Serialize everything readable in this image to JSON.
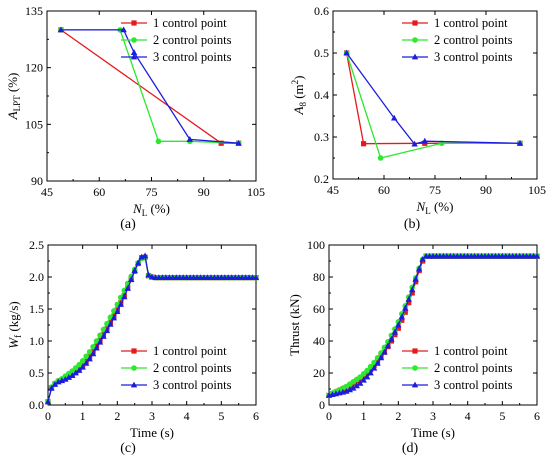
{
  "figure": {
    "colors": {
      "series1": "#e41a1c",
      "series2": "#2ee82e",
      "series3": "#1c1cdc",
      "axis": "#000000"
    },
    "markers": {
      "series1": "square",
      "series2": "circle",
      "series3": "triangle"
    }
  },
  "chart_data": [
    {
      "type": "line",
      "caption": "(a)",
      "xlabel": {
        "main": "N",
        "sub": "L",
        "unit": " (%)"
      },
      "ylabel": {
        "main": "A",
        "sub": "LPT",
        "unit": " (%)"
      },
      "xlim": [
        45,
        105
      ],
      "ylim": [
        90,
        135
      ],
      "xticks": [
        45,
        60,
        75,
        90,
        105
      ],
      "yticks": [
        90,
        105,
        120,
        135
      ],
      "xtick_labels": [
        "45",
        "60",
        "75",
        "90",
        "105"
      ],
      "ytick_labels": [
        "90",
        "105",
        "120",
        "135"
      ],
      "legend": "top-right",
      "series": [
        {
          "name": "1 control point",
          "marker": "square",
          "color": "#e41a1c",
          "points": [
            [
              49,
              130
            ],
            [
              95,
              100
            ],
            [
              100,
              100
            ]
          ]
        },
        {
          "name": "2 control points",
          "marker": "circle",
          "color": "#2ee82e",
          "points": [
            [
              49,
              130
            ],
            [
              66,
              130
            ],
            [
              77,
              100.5
            ],
            [
              86,
              100.5
            ],
            [
              100,
              100
            ]
          ]
        },
        {
          "name": "3 control points",
          "marker": "triangle",
          "color": "#1c1cdc",
          "points": [
            [
              49,
              130
            ],
            [
              67,
              130
            ],
            [
              70,
              124
            ],
            [
              86,
              101
            ],
            [
              100,
              100
            ]
          ]
        }
      ]
    },
    {
      "type": "line",
      "caption": "(b)",
      "xlabel": {
        "main": "N",
        "sub": "L",
        "unit": " (%)"
      },
      "ylabel": {
        "main": "A",
        "sub": "8",
        "unit": " (m",
        "sup": "2",
        "unit2": ")"
      },
      "xlim": [
        45,
        105
      ],
      "ylim": [
        0.2,
        0.6
      ],
      "xticks": [
        45,
        60,
        75,
        90,
        105
      ],
      "yticks": [
        0.2,
        0.3,
        0.4,
        0.5,
        0.6
      ],
      "xtick_labels": [
        "45",
        "60",
        "75",
        "90",
        "105"
      ],
      "ytick_labels": [
        "0.2",
        "0.3",
        "0.4",
        "0.5",
        "0.6"
      ],
      "legend": "top-right",
      "series": [
        {
          "name": "1 control point",
          "marker": "square",
          "color": "#e41a1c",
          "points": [
            [
              49,
              0.5
            ],
            [
              54,
              0.284
            ],
            [
              72,
              0.285
            ],
            [
              100,
              0.285
            ]
          ]
        },
        {
          "name": "2 control points",
          "marker": "circle",
          "color": "#2ee82e",
          "points": [
            [
              49,
              0.5
            ],
            [
              59,
              0.25
            ],
            [
              77,
              0.285
            ],
            [
              100,
              0.285
            ]
          ]
        },
        {
          "name": "3 control points",
          "marker": "triangle",
          "color": "#1c1cdc",
          "points": [
            [
              49,
              0.5
            ],
            [
              63,
              0.345
            ],
            [
              69,
              0.283
            ],
            [
              72,
              0.29
            ],
            [
              100,
              0.285
            ]
          ]
        }
      ]
    },
    {
      "type": "line",
      "caption": "(c)",
      "xlabel": {
        "main": "Time",
        "unit": " (s)"
      },
      "ylabel": {
        "main": "W",
        "sub": "f",
        "unit": " (kg/s)"
      },
      "xlim": [
        0,
        6
      ],
      "ylim": [
        0,
        2.5
      ],
      "xticks": [
        0,
        1,
        2,
        3,
        4,
        5,
        6
      ],
      "yticks": [
        0,
        0.5,
        1,
        1.5,
        2,
        2.5
      ],
      "xtick_labels": [
        "0",
        "1",
        "2",
        "3",
        "4",
        "5",
        "6"
      ],
      "ytick_labels": [
        "0.0",
        "0.5",
        "1.0",
        "1.5",
        "2.0",
        "2.5"
      ],
      "legend": "bottom-right",
      "series": [
        {
          "name": "1 control point",
          "marker": "square",
          "color": "#e41a1c",
          "x": [
            0,
            0.1,
            0.2,
            0.3,
            0.4,
            0.5,
            0.6,
            0.7,
            0.8,
            0.9,
            1.0,
            1.1,
            1.2,
            1.3,
            1.4,
            1.5,
            1.6,
            1.7,
            1.8,
            1.9,
            2.0,
            2.1,
            2.2,
            2.3,
            2.4,
            2.5,
            2.6,
            2.7,
            2.8,
            2.9,
            3.0,
            3.1,
            3.2,
            3.3,
            3.4,
            3.5,
            3.6,
            3.7,
            3.8,
            3.9,
            4.0,
            4.1,
            4.2,
            4.3,
            4.4,
            4.5,
            4.6,
            4.7,
            4.8,
            4.9,
            5.0,
            5.1,
            5.2,
            5.3,
            5.4,
            5.5,
            5.6,
            5.7,
            5.8,
            5.9,
            6.0
          ],
          "y": [
            0.05,
            0.27,
            0.33,
            0.37,
            0.39,
            0.42,
            0.45,
            0.48,
            0.52,
            0.57,
            0.62,
            0.68,
            0.75,
            0.83,
            0.92,
            1.01,
            1.1,
            1.19,
            1.29,
            1.39,
            1.49,
            1.6,
            1.71,
            1.83,
            1.96,
            2.09,
            2.21,
            2.3,
            2.31,
            2.02,
            2.0,
            1.99,
            1.99,
            1.99,
            1.99,
            1.99,
            1.99,
            1.99,
            1.99,
            1.99,
            1.99,
            1.99,
            1.99,
            1.99,
            1.99,
            1.99,
            1.99,
            1.99,
            1.99,
            1.99,
            1.99,
            1.99,
            1.99,
            1.99,
            1.99,
            1.99,
            1.99,
            1.99,
            1.99,
            1.99,
            1.99
          ]
        },
        {
          "name": "2 control points",
          "marker": "circle",
          "color": "#2ee82e",
          "x": [
            0,
            0.1,
            0.2,
            0.3,
            0.4,
            0.5,
            0.6,
            0.7,
            0.8,
            0.9,
            1.0,
            1.1,
            1.2,
            1.3,
            1.4,
            1.5,
            1.6,
            1.7,
            1.8,
            1.9,
            2.0,
            2.1,
            2.2,
            2.3,
            2.4,
            2.5,
            2.6,
            2.7,
            2.8,
            2.9,
            3.0,
            3.1,
            3.2,
            3.3,
            3.4,
            3.5,
            3.6,
            3.7,
            3.8,
            3.9,
            4.0,
            4.1,
            4.2,
            4.3,
            4.4,
            4.5,
            4.6,
            4.7,
            4.8,
            4.9,
            5.0,
            5.1,
            5.2,
            5.3,
            5.4,
            5.5,
            5.6,
            5.7,
            5.8,
            5.9,
            6.0
          ],
          "y": [
            0.05,
            0.28,
            0.34,
            0.38,
            0.41,
            0.45,
            0.49,
            0.53,
            0.58,
            0.63,
            0.69,
            0.76,
            0.83,
            0.91,
            1.0,
            1.09,
            1.18,
            1.27,
            1.37,
            1.47,
            1.57,
            1.68,
            1.79,
            1.9,
            2.01,
            2.12,
            2.22,
            2.29,
            2.3,
            2.02,
            2.0,
            1.99,
            1.99,
            1.99,
            1.99,
            1.99,
            1.99,
            1.99,
            1.99,
            1.99,
            1.99,
            1.99,
            1.99,
            1.99,
            1.99,
            1.99,
            1.99,
            1.99,
            1.99,
            1.99,
            1.99,
            1.99,
            1.99,
            1.99,
            1.99,
            1.99,
            1.99,
            1.99,
            1.99,
            1.99,
            1.99
          ]
        },
        {
          "name": "3 control points",
          "marker": "triangle",
          "color": "#1c1cdc",
          "x": [
            0,
            0.1,
            0.2,
            0.3,
            0.4,
            0.5,
            0.6,
            0.7,
            0.8,
            0.9,
            1.0,
            1.1,
            1.2,
            1.3,
            1.4,
            1.5,
            1.6,
            1.7,
            1.8,
            1.9,
            2.0,
            2.1,
            2.2,
            2.3,
            2.4,
            2.5,
            2.6,
            2.7,
            2.8,
            2.9,
            3.0,
            3.1,
            3.2,
            3.3,
            3.4,
            3.5,
            3.6,
            3.7,
            3.8,
            3.9,
            4.0,
            4.1,
            4.2,
            4.3,
            4.4,
            4.5,
            4.6,
            4.7,
            4.8,
            4.9,
            5.0,
            5.1,
            5.2,
            5.3,
            5.4,
            5.5,
            5.6,
            5.7,
            5.8,
            5.9,
            6.0
          ],
          "y": [
            0.05,
            0.26,
            0.32,
            0.36,
            0.38,
            0.4,
            0.43,
            0.46,
            0.5,
            0.54,
            0.59,
            0.65,
            0.72,
            0.8,
            0.89,
            0.98,
            1.07,
            1.16,
            1.26,
            1.36,
            1.46,
            1.57,
            1.69,
            1.82,
            1.96,
            2.1,
            2.22,
            2.31,
            2.33,
            2.03,
            2.0,
            1.99,
            1.99,
            1.99,
            1.99,
            1.99,
            1.99,
            1.99,
            1.99,
            1.99,
            1.99,
            1.99,
            1.99,
            1.99,
            1.99,
            1.99,
            1.99,
            1.99,
            1.99,
            1.99,
            1.99,
            1.99,
            1.99,
            1.99,
            1.99,
            1.99,
            1.99,
            1.99,
            1.99,
            1.99,
            1.99
          ]
        }
      ]
    },
    {
      "type": "line",
      "caption": "(d)",
      "xlabel": {
        "main": "Time",
        "unit": " (s)"
      },
      "ylabel": {
        "main": "Thrust",
        "unit": " (kN)"
      },
      "xlim": [
        0,
        6
      ],
      "ylim": [
        0,
        100
      ],
      "xticks": [
        0,
        1,
        2,
        3,
        4,
        5,
        6
      ],
      "yticks": [
        0,
        20,
        40,
        60,
        80,
        100
      ],
      "xtick_labels": [
        "0",
        "1",
        "2",
        "3",
        "4",
        "5",
        "6"
      ],
      "ytick_labels": [
        "0",
        "20",
        "40",
        "60",
        "80",
        "100"
      ],
      "legend": "bottom-right",
      "series": [
        {
          "name": "1 control point",
          "marker": "square",
          "color": "#e41a1c",
          "x": [
            0,
            0.1,
            0.2,
            0.3,
            0.4,
            0.5,
            0.6,
            0.7,
            0.8,
            0.9,
            1.0,
            1.1,
            1.2,
            1.3,
            1.4,
            1.5,
            1.6,
            1.7,
            1.8,
            1.9,
            2.0,
            2.1,
            2.2,
            2.3,
            2.4,
            2.5,
            2.6,
            2.7,
            2.8,
            2.9,
            3.0,
            3.1,
            3.2,
            3.3,
            3.4,
            3.5,
            3.6,
            3.7,
            3.8,
            3.9,
            4.0,
            4.1,
            4.2,
            4.3,
            4.4,
            4.5,
            4.6,
            4.7,
            4.8,
            4.9,
            5.0,
            5.1,
            5.2,
            5.3,
            5.4,
            5.5,
            5.6,
            5.7,
            5.8,
            5.9,
            6.0
          ],
          "y": [
            6,
            7,
            8,
            9,
            10,
            11,
            12,
            13.5,
            15,
            16.5,
            18,
            20,
            22,
            24.5,
            27,
            30,
            33,
            36.5,
            40,
            44,
            48,
            53,
            58,
            64,
            70,
            77,
            84,
            90,
            93,
            93,
            93,
            93,
            93,
            93,
            93,
            93,
            93,
            93,
            93,
            93,
            93,
            93,
            93,
            93,
            93,
            93,
            93,
            93,
            93,
            93,
            93,
            93,
            93,
            93,
            93,
            93,
            93,
            93,
            93,
            93,
            93
          ]
        },
        {
          "name": "2 control points",
          "marker": "circle",
          "color": "#2ee82e",
          "x": [
            0,
            0.1,
            0.2,
            0.3,
            0.4,
            0.5,
            0.6,
            0.7,
            0.8,
            0.9,
            1.0,
            1.1,
            1.2,
            1.3,
            1.4,
            1.5,
            1.6,
            1.7,
            1.8,
            1.9,
            2.0,
            2.1,
            2.2,
            2.3,
            2.4,
            2.5,
            2.6,
            2.7,
            2.8,
            2.9,
            3.0,
            3.1,
            3.2,
            3.3,
            3.4,
            3.5,
            3.6,
            3.7,
            3.8,
            3.9,
            4.0,
            4.1,
            4.2,
            4.3,
            4.4,
            4.5,
            4.6,
            4.7,
            4.8,
            4.9,
            5.0,
            5.1,
            5.2,
            5.3,
            5.4,
            5.5,
            5.6,
            5.7,
            5.8,
            5.9,
            6.0
          ],
          "y": [
            6,
            7.5,
            8.5,
            9.5,
            10.5,
            11.5,
            13,
            14.5,
            16,
            17.5,
            19.5,
            21.5,
            24,
            26.5,
            29.5,
            32.5,
            36,
            39.5,
            43.5,
            47.5,
            52,
            57,
            62,
            67.5,
            73.5,
            79.5,
            85.5,
            91,
            93,
            93,
            93,
            93,
            93,
            93,
            93,
            93,
            93,
            93,
            93,
            93,
            93,
            93,
            93,
            93,
            93,
            93,
            93,
            93,
            93,
            93,
            93,
            93,
            93,
            93,
            93,
            93,
            93,
            93,
            93,
            93,
            93
          ]
        },
        {
          "name": "3 control points",
          "marker": "triangle",
          "color": "#1c1cdc",
          "x": [
            0,
            0.1,
            0.2,
            0.3,
            0.4,
            0.5,
            0.6,
            0.7,
            0.8,
            0.9,
            1.0,
            1.1,
            1.2,
            1.3,
            1.4,
            1.5,
            1.6,
            1.7,
            1.8,
            1.9,
            2.0,
            2.1,
            2.2,
            2.3,
            2.4,
            2.5,
            2.6,
            2.7,
            2.8,
            2.9,
            3.0,
            3.1,
            3.2,
            3.3,
            3.4,
            3.5,
            3.6,
            3.7,
            3.8,
            3.9,
            4.0,
            4.1,
            4.2,
            4.3,
            4.4,
            4.5,
            4.6,
            4.7,
            4.8,
            4.9,
            5.0,
            5.1,
            5.2,
            5.3,
            5.4,
            5.5,
            5.6,
            5.7,
            5.8,
            5.9,
            6.0
          ],
          "y": [
            6,
            6.5,
            7,
            7.5,
            8,
            8.5,
            9.5,
            10.5,
            12,
            13.5,
            15.5,
            17.5,
            20,
            23,
            26,
            29.5,
            33,
            37,
            41,
            45.5,
            50,
            55,
            60.5,
            66,
            72,
            78.5,
            85,
            91,
            93,
            93,
            93,
            93,
            93,
            93,
            93,
            93,
            93,
            93,
            93,
            93,
            93,
            93,
            93,
            93,
            93,
            93,
            93,
            93,
            93,
            93,
            93,
            93,
            93,
            93,
            93,
            93,
            93,
            93,
            93,
            93,
            93
          ]
        }
      ]
    }
  ]
}
